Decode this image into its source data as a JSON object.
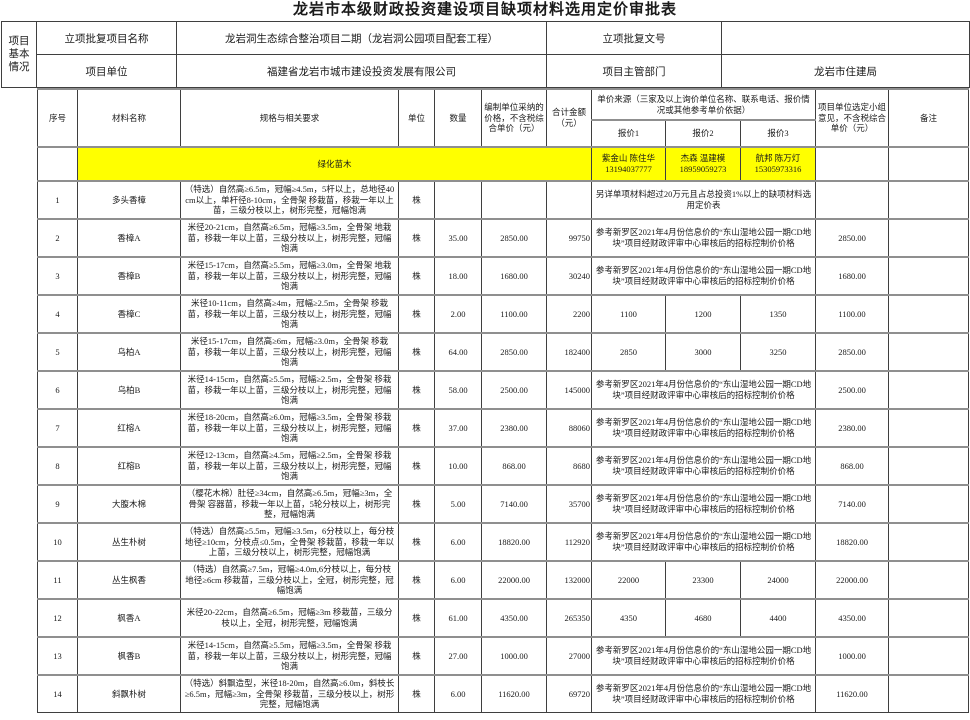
{
  "title": "龙岩市本级财政投资建设项目缺项材料选用定价审批表",
  "accent_yellow": "#ffff00",
  "info": {
    "section_label": "项目基本情况",
    "row1": {
      "label": "立项批复项目名称",
      "value": "龙岩洞生态综合整治项目二期（龙岩洞公园项目配套工程）",
      "label2": "立项批复文号",
      "value2": ""
    },
    "row2": {
      "label": "项目单位",
      "value": "福建省龙岩市城市建设投资发展有限公司",
      "label2": "项目主管部门",
      "value2": "龙岩市住建局"
    }
  },
  "table": {
    "headers": {
      "no": "序号",
      "name": "材料名称",
      "spec": "规格与相关要求",
      "unit": "单位",
      "qty": "数量",
      "price": "编制单位采纳的价格，不含税综合单价（元）",
      "total": "合计金额（元）",
      "source_group": "单价来源（三家及以上询价单位名称、联系电话、报价情况或其他参考单价依据）",
      "quote1": "报价1",
      "quote2": "报价2",
      "quote3": "报价3",
      "opinion": "项目单位选定小组意见，不含税综合单价（元）",
      "remark": "备注"
    },
    "category_row": {
      "name": "绿化苗木",
      "quote1": {
        "company": "紫金山 陈住华",
        "phone": "13194037777"
      },
      "quote2": {
        "company": "杰森 温建模",
        "phone": "18959059273"
      },
      "quote3": {
        "company": "航邦 陈万灯",
        "phone": "15305973316"
      }
    },
    "rows": [
      {
        "no": "1",
        "name": "多头香樟",
        "spec": "（特选）自然高≥6.5m，冠幅≥4.5m，5杆以上，总地径40cm以上，单杆径8-10cm，全骨架 移栽苗，移栽一年以上苗，三级分枝以上，树形完整，冠幅饱满",
        "unit": "株",
        "qty": "",
        "price": "",
        "total": "",
        "quote_note": "另详单项材料超过20万元且占总投资1%以上的缺项材料选用定价表",
        "opinion": "",
        "remark": ""
      },
      {
        "no": "2",
        "name": "香樟A",
        "spec": "米径20-21cm，自然高≥6.5m，冠幅≥3.5m，全骨架 地栽苗，移栽一年以上苗，三级分枝以上，树形完整，冠幅饱满",
        "unit": "株",
        "qty": "35.00",
        "price": "2850.00",
        "total": "99750",
        "quote_note": "参考新罗区2021年4月份信息价的“东山湿地公园一期CD地块”项目经财政评审中心审核后的招标控制价价格",
        "opinion": "2850.00",
        "remark": ""
      },
      {
        "no": "3",
        "name": "香樟B",
        "spec": "米径15-17cm，自然高≥5.5m，冠幅≥3.0m，全骨架 地栽苗，移栽一年以上苗，三级分枝以上，树形完整，冠幅饱满",
        "unit": "株",
        "qty": "18.00",
        "price": "1680.00",
        "total": "30240",
        "quote_note": "参考新罗区2021年4月份信息价的“东山湿地公园一期CD地块”项目经财政评审中心审核后的招标控制价价格",
        "opinion": "1680.00",
        "remark": ""
      },
      {
        "no": "4",
        "name": "香樟C",
        "spec": "米径10-11cm，自然高≥4m，冠幅≥2.5m，全骨架 移栽苗，移栽一年以上苗，三级分枝以上，树形完整，冠幅饱满",
        "unit": "株",
        "qty": "2.00",
        "price": "1100.00",
        "total": "2200",
        "q1": "1100",
        "q2": "1200",
        "q3": "1350",
        "opinion": "1100.00",
        "remark": ""
      },
      {
        "no": "5",
        "name": "乌柏A",
        "spec": "米径15-17cm，自然高≥6m，冠幅≥3.0m，全骨架 移栽苗，移栽一年以上苗，三级分枝以上，树形完整，冠幅饱满",
        "unit": "株",
        "qty": "64.00",
        "price": "2850.00",
        "total": "182400",
        "q1": "2850",
        "q2": "3000",
        "q3": "3250",
        "opinion": "2850.00",
        "remark": ""
      },
      {
        "no": "6",
        "name": "乌柏B",
        "spec": "米径14-15cm，自然高≥5.5m，冠幅≥2.5m，全骨架 移栽苗，移栽一年以上苗，三级分枝以上，树形完整，冠幅饱满",
        "unit": "株",
        "qty": "58.00",
        "price": "2500.00",
        "total": "145000",
        "quote_note": "参考新罗区2021年4月份信息价的“东山湿地公园一期CD地块”项目经财政评审中心审核后的招标控制价价格",
        "opinion": "2500.00",
        "remark": ""
      },
      {
        "no": "7",
        "name": "红榕A",
        "spec": "米径18-20cm，自然高≥6.0m，冠幅≥3.5m，全骨架 移栽苗，移栽一年以上苗，三级分枝以上，树形完整，冠幅饱满",
        "unit": "株",
        "qty": "37.00",
        "price": "2380.00",
        "total": "88060",
        "quote_note": "参考新罗区2021年4月份信息价的“东山湿地公园一期CD地块”项目经财政评审中心审核后的招标控制价价格",
        "opinion": "2380.00",
        "remark": ""
      },
      {
        "no": "8",
        "name": "红榕B",
        "spec": "米径12-13cm，自然高≥4.5m，冠幅≥2.5m，全骨架 移栽苗，移栽一年以上苗，三级分枝以上，树形完整，冠幅饱满",
        "unit": "株",
        "qty": "10.00",
        "price": "868.00",
        "total": "8680",
        "quote_note": "参考新罗区2021年4月份信息价的“东山湿地公园一期CD地块”项目经财政评审中心审核后的招标控制价价格",
        "opinion": "868.00",
        "remark": ""
      },
      {
        "no": "9",
        "name": "大腹木棉",
        "spec": "（樱花木棉）肚径≥34cm，自然高≥6.5m，冠幅≥3m，全骨架 容器苗，移栽一年以上苗，5轮分枝以上，树形完整，冠幅饱满",
        "unit": "株",
        "qty": "5.00",
        "price": "7140.00",
        "total": "35700",
        "quote_note": "参考新罗区2021年4月份信息价的“东山湿地公园一期CD地块”项目经财政评审中心审核后的招标控制价价格",
        "opinion": "7140.00",
        "remark": ""
      },
      {
        "no": "10",
        "name": "丛生朴树",
        "spec": "（特选）自然高≥5.5m，冠幅≥3.5m，6分枝以上，每分枝地径≥10cm，分枝点≤0.5m，全骨架 移栽苗，移栽一年以上苗，三级分枝以上，树形完整，冠幅饱满",
        "unit": "株",
        "qty": "6.00",
        "price": "18820.00",
        "total": "112920",
        "quote_note": "参考新罗区2021年4月份信息价的“东山湿地公园一期CD地块”项目经财政评审中心审核后的招标控制价价格",
        "opinion": "18820.00",
        "remark": ""
      },
      {
        "no": "11",
        "name": "丛生枫香",
        "spec": "（特选）自然高≥7.5m，冠幅≥4.0m,6分枝以上，每分枝地径≥6cm 移栽苗，三级分枝以上，全冠，树形完整，冠幅饱满",
        "unit": "株",
        "qty": "6.00",
        "price": "22000.00",
        "total": "132000",
        "q1": "22000",
        "q2": "23300",
        "q3": "24000",
        "opinion": "22000.00",
        "remark": ""
      },
      {
        "no": "12",
        "name": "枫香A",
        "spec": "米径20-22cm，自然高≥6.5m，冠幅≥3m 移栽苗，三级分枝以上，全冠，树形完整，冠幅饱满",
        "unit": "株",
        "qty": "61.00",
        "price": "4350.00",
        "total": "265350",
        "q1": "4350",
        "q2": "4680",
        "q3": "4400",
        "opinion": "4350.00",
        "remark": ""
      },
      {
        "no": "13",
        "name": "枫香B",
        "spec": "米径14-15cm，自然高≥5.5m，冠幅≥3.5m，全骨架 移栽苗，移栽一年以上苗，三级分枝以上，树形完整，冠幅饱满",
        "unit": "株",
        "qty": "27.00",
        "price": "1000.00",
        "total": "27000",
        "quote_note": "参考新罗区2021年4月份信息价的“东山湿地公园一期CD地块”项目经财政评审中心审核后的招标控制价价格",
        "opinion": "1000.00",
        "remark": ""
      },
      {
        "no": "14",
        "name": "斜飘朴树",
        "spec": "（特选）斜飘造型，米径18-20m，自然高≥6.0m，斜枝长≥6.5m，冠幅≥3m，全骨架 移栽苗，三级分枝以上，树形完整，冠幅饱满",
        "unit": "株",
        "qty": "6.00",
        "price": "11620.00",
        "total": "69720",
        "quote_note": "参考新罗区2021年4月份信息价的“东山湿地公园一期CD地块”项目经财政评审中心审核后的招标控制价价格",
        "opinion": "11620.00",
        "remark": ""
      }
    ]
  }
}
